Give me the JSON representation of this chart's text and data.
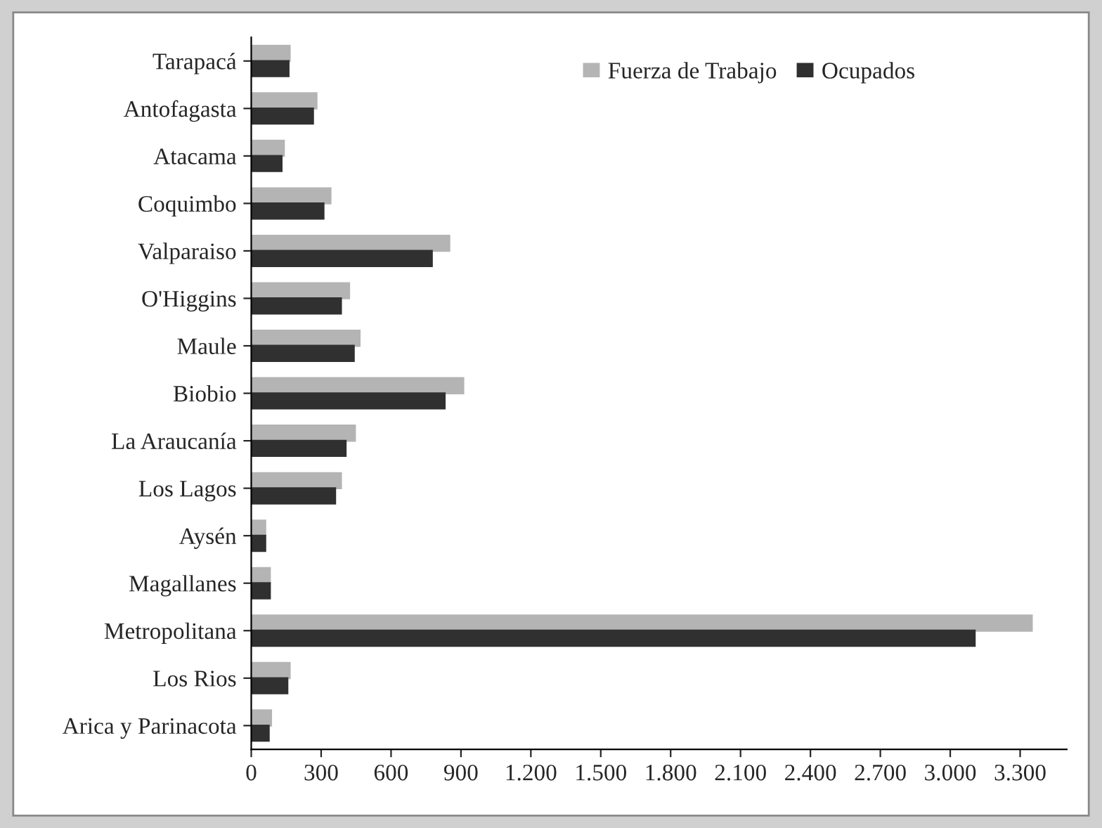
{
  "chart_data": {
    "type": "bar",
    "orientation": "horizontal",
    "categories": [
      "Tarapacá",
      "Antofagasta",
      "Atacama",
      "Coquimbo",
      "Valparaiso",
      "O'Higgins",
      "Maule",
      "Biobio",
      "La Araucanía",
      "Los Lagos",
      "Aysén",
      "Magallanes",
      "Metropolitana",
      "Los Rios",
      "Arica y Parinacota"
    ],
    "series": [
      {
        "name": "Fuerza de Trabajo",
        "color": "#b4b4b4",
        "values": [
          165,
          280,
          140,
          340,
          850,
          420,
          465,
          910,
          445,
          385,
          60,
          80,
          3350,
          165,
          85
        ]
      },
      {
        "name": "Ocupados",
        "color": "#303030",
        "values": [
          160,
          265,
          130,
          310,
          775,
          385,
          440,
          830,
          405,
          360,
          60,
          80,
          3105,
          155,
          75
        ]
      }
    ],
    "xlim": [
      0,
      3500
    ],
    "xticks": [
      0,
      300,
      600,
      900,
      {
        "value": 1200,
        "label": "1.200"
      },
      {
        "value": 1500,
        "label": "1.500"
      },
      {
        "value": 1800,
        "label": "1.800"
      },
      {
        "value": 2100,
        "label": "2.100"
      },
      {
        "value": 2400,
        "label": "2.400"
      },
      {
        "value": 2700,
        "label": "2.700"
      },
      {
        "value": 3000,
        "label": "3.000"
      },
      {
        "value": 3300,
        "label": "3.300"
      }
    ],
    "grid": false,
    "legend": "top right"
  }
}
